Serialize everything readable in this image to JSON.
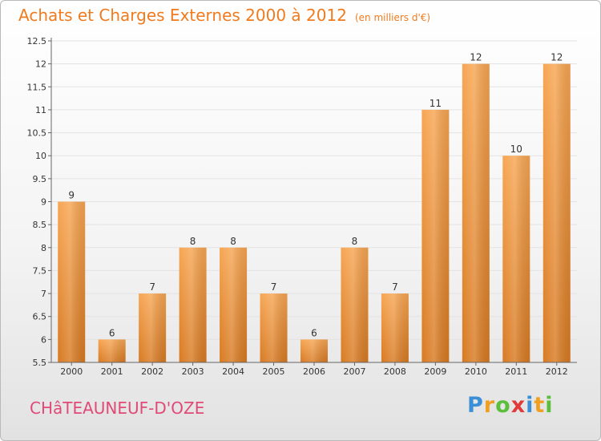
{
  "header": {
    "title": "Achats et Charges Externes 2000 à 2012",
    "unit": "(en milliers d'€)"
  },
  "footer": {
    "town": "CHâTEAUNEUF-D'OZE",
    "brand_letters": [
      {
        "char": "P",
        "color": "#3a8fd6"
      },
      {
        "char": "r",
        "color": "#f0a020"
      },
      {
        "char": "o",
        "color": "#5bbf3b"
      },
      {
        "char": "x",
        "color": "#e03a3a"
      },
      {
        "char": "i",
        "color": "#3a8fd6"
      },
      {
        "char": "t",
        "color": "#f0a020"
      },
      {
        "char": "i",
        "color": "#5bbf3b"
      }
    ]
  },
  "colors": {
    "title": "#f07b1f",
    "town": "#e04a78",
    "bar_light": "#f7a653",
    "bar_dark": "#d87a22",
    "axis": "#666666",
    "grid": "#e3e3e3"
  },
  "chart_data": {
    "type": "bar",
    "title": "Achats et Charges Externes 2000 à 2012",
    "subtitle": "(en milliers d'€)",
    "xlabel": "",
    "ylabel": "",
    "ylim": [
      5.5,
      12.5
    ],
    "yticks": [
      5.5,
      6,
      6.5,
      7,
      7.5,
      8,
      8.5,
      9,
      9.5,
      10,
      10.5,
      11,
      11.5,
      12,
      12.5
    ],
    "ytick_labels": [
      "5.5",
      "6",
      "6.5",
      "7",
      "7.5",
      "8",
      "8.5",
      "9",
      "9.5",
      "10",
      "10.5",
      "11",
      "11.5",
      "12",
      "12.5"
    ],
    "categories": [
      "2000",
      "2001",
      "2002",
      "2003",
      "2004",
      "2005",
      "2006",
      "2007",
      "2008",
      "2009",
      "2010",
      "2011",
      "2012"
    ],
    "values": [
      9,
      6,
      7,
      8,
      8,
      7,
      6,
      8,
      7,
      11,
      12,
      10,
      12
    ],
    "data_labels": [
      "9",
      "6",
      "7",
      "8",
      "8",
      "7",
      "6",
      "8",
      "7",
      "11",
      "12",
      "10",
      "12"
    ],
    "grid": true
  }
}
